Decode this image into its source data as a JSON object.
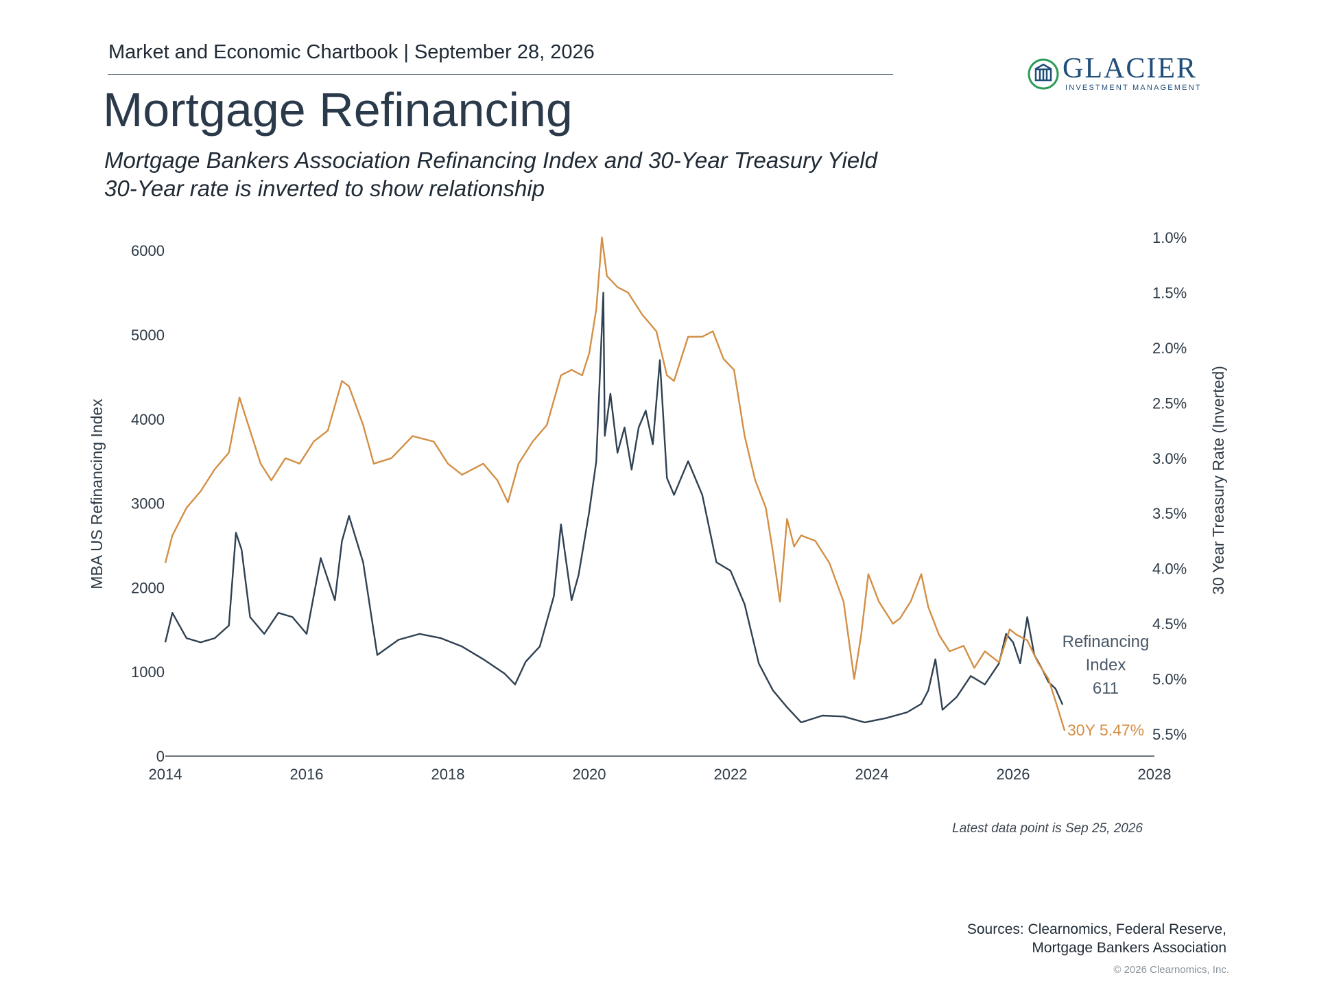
{
  "header": {
    "chartbook": "Market and Economic Chartbook | September 28, 2026",
    "title": "Mortgage Refinancing",
    "subtitle_line1": "Mortgage Bankers Association Refinancing Index and 30-Year Treasury Yield",
    "subtitle_line2": "30-Year rate is inverted to show relationship"
  },
  "logo": {
    "name": "GLACIER",
    "tagline": "INVESTMENT MANAGEMENT",
    "color": "#1f4e79",
    "icon": "glacier-building-icon",
    "icon_color": "#2e9a5a"
  },
  "footer": {
    "latest_note": "Latest data point is Sep 25, 2026",
    "sources_line1": "Sources: Clearnomics, Federal Reserve,",
    "sources_line2": "Mortgage Bankers Association",
    "copyright": "© 2026 Clearnomics, Inc."
  },
  "colors": {
    "refi": "#2f4152",
    "treasury": "#d38f45",
    "axis": "#3c4650",
    "text": "#2d3a46"
  },
  "chart_data": {
    "type": "line",
    "xlim": [
      2014,
      2028
    ],
    "x_ticks": [
      "2014",
      "2016",
      "2018",
      "2020",
      "2022",
      "2024",
      "2026",
      "2028"
    ],
    "y_left": {
      "label": "MBA US Refinancing Index",
      "lim": [
        0,
        6400
      ],
      "ticks": [
        "0",
        "1000",
        "2000",
        "3000",
        "4000",
        "5000",
        "6000"
      ]
    },
    "y_right": {
      "label": "30 Year Treasury Rate (Inverted)",
      "lim": [
        1.0,
        5.5
      ],
      "inverted": true,
      "ticks": [
        "1.0%",
        "1.5%",
        "2.0%",
        "2.5%",
        "3.0%",
        "3.5%",
        "4.0%",
        "4.5%",
        "5.0%",
        "5.5%"
      ]
    },
    "series": [
      {
        "axis": "left",
        "end_label": [
          "Refinancing",
          "Index",
          "611"
        ],
        "x": [
          2014.0,
          2014.1,
          2014.3,
          2014.5,
          2014.7,
          2014.9,
          2015.0,
          2015.08,
          2015.2,
          2015.4,
          2015.6,
          2015.8,
          2016.0,
          2016.2,
          2016.4,
          2016.5,
          2016.6,
          2016.8,
          2017.0,
          2017.3,
          2017.6,
          2017.9,
          2018.2,
          2018.5,
          2018.8,
          2018.95,
          2019.1,
          2019.3,
          2019.5,
          2019.6,
          2019.75,
          2019.85,
          2020.0,
          2020.1,
          2020.2,
          2020.22,
          2020.3,
          2020.4,
          2020.5,
          2020.6,
          2020.7,
          2020.8,
          2020.9,
          2021.0,
          2021.1,
          2021.2,
          2021.4,
          2021.6,
          2021.8,
          2022.0,
          2022.2,
          2022.4,
          2022.6,
          2022.8,
          2023.0,
          2023.3,
          2023.6,
          2023.9,
          2024.2,
          2024.5,
          2024.7,
          2024.8,
          2024.9,
          2025.0,
          2025.2,
          2025.4,
          2025.6,
          2025.8,
          2025.9,
          2026.0,
          2026.1,
          2026.2,
          2026.3,
          2026.4,
          2026.5,
          2026.6,
          2026.7
        ],
        "values": [
          1350,
          1700,
          1400,
          1350,
          1400,
          1550,
          2650,
          2450,
          1650,
          1450,
          1700,
          1650,
          1450,
          2350,
          1850,
          2550,
          2850,
          2300,
          1200,
          1380,
          1450,
          1400,
          1300,
          1150,
          980,
          850,
          1120,
          1300,
          1900,
          2750,
          1850,
          2150,
          2900,
          3500,
          5500,
          3800,
          4300,
          3600,
          3900,
          3400,
          3900,
          4100,
          3700,
          4700,
          3300,
          3100,
          3500,
          3100,
          2300,
          2200,
          1800,
          1100,
          780,
          580,
          400,
          480,
          470,
          400,
          450,
          520,
          620,
          780,
          1150,
          550,
          700,
          950,
          850,
          1100,
          1450,
          1350,
          1100,
          1650,
          1200,
          1050,
          880,
          800,
          611
        ]
      },
      {
        "axis": "right",
        "end_label": "30Y 5.47%",
        "x": [
          2014.0,
          2014.1,
          2014.3,
          2014.5,
          2014.7,
          2014.9,
          2015.05,
          2015.2,
          2015.35,
          2015.5,
          2015.7,
          2015.9,
          2016.1,
          2016.3,
          2016.5,
          2016.6,
          2016.8,
          2016.95,
          2017.2,
          2017.5,
          2017.8,
          2018.0,
          2018.2,
          2018.5,
          2018.7,
          2018.85,
          2019.0,
          2019.2,
          2019.4,
          2019.6,
          2019.75,
          2019.9,
          2020.0,
          2020.1,
          2020.18,
          2020.25,
          2020.4,
          2020.55,
          2020.75,
          2020.95,
          2021.1,
          2021.2,
          2021.4,
          2021.6,
          2021.75,
          2021.9,
          2022.05,
          2022.2,
          2022.35,
          2022.5,
          2022.6,
          2022.7,
          2022.8,
          2022.9,
          2023.0,
          2023.2,
          2023.4,
          2023.6,
          2023.75,
          2023.85,
          2023.95,
          2024.1,
          2024.3,
          2024.4,
          2024.55,
          2024.7,
          2024.8,
          2024.95,
          2025.1,
          2025.3,
          2025.45,
          2025.6,
          2025.8,
          2025.95,
          2026.05,
          2026.2,
          2026.35,
          2026.5,
          2026.6,
          2026.73
        ],
        "values": [
          3.95,
          3.7,
          3.45,
          3.3,
          3.1,
          2.95,
          2.45,
          2.75,
          3.05,
          3.2,
          3.0,
          3.05,
          2.85,
          2.75,
          2.3,
          2.35,
          2.7,
          3.05,
          3.0,
          2.8,
          2.85,
          3.05,
          3.15,
          3.05,
          3.2,
          3.4,
          3.05,
          2.85,
          2.7,
          2.25,
          2.2,
          2.25,
          2.05,
          1.65,
          1.0,
          1.35,
          1.45,
          1.5,
          1.7,
          1.85,
          2.25,
          2.3,
          1.9,
          1.9,
          1.85,
          2.1,
          2.2,
          2.8,
          3.2,
          3.45,
          3.85,
          4.3,
          3.55,
          3.8,
          3.7,
          3.75,
          3.95,
          4.3,
          5.0,
          4.6,
          4.05,
          4.3,
          4.5,
          4.45,
          4.3,
          4.05,
          4.35,
          4.6,
          4.75,
          4.7,
          4.9,
          4.75,
          4.85,
          4.55,
          4.6,
          4.65,
          4.85,
          5.0,
          5.2,
          5.47
        ]
      }
    ]
  }
}
